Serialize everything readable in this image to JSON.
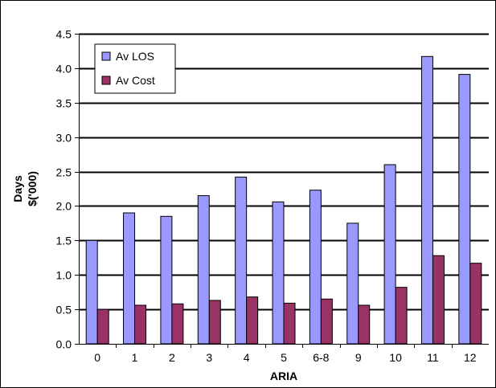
{
  "chart_data": {
    "type": "bar",
    "categories": [
      "0",
      "1",
      "2",
      "3",
      "4",
      "5",
      "6-8",
      "9",
      "10",
      "11",
      "12"
    ],
    "series": [
      {
        "name": "Av LOS",
        "color": "#9999FF",
        "values": [
          1.5,
          1.9,
          1.85,
          2.15,
          2.42,
          2.06,
          2.23,
          1.75,
          2.6,
          4.17,
          3.91
        ]
      },
      {
        "name": "Av Cost",
        "color": "#993366",
        "values": [
          0.5,
          0.56,
          0.58,
          0.63,
          0.68,
          0.59,
          0.65,
          0.56,
          0.82,
          1.28,
          1.17
        ]
      }
    ],
    "xlabel": "ARIA",
    "ylabel_lines": [
      "Days",
      "$('000)"
    ],
    "ylim": [
      0,
      4.5
    ],
    "yticks": [
      "0.0",
      "0.5",
      "1.0",
      "1.5",
      "2.0",
      "2.5",
      "3.0",
      "3.5",
      "4.0",
      "4.5"
    ],
    "grid": true,
    "legend_position": "top-left"
  }
}
